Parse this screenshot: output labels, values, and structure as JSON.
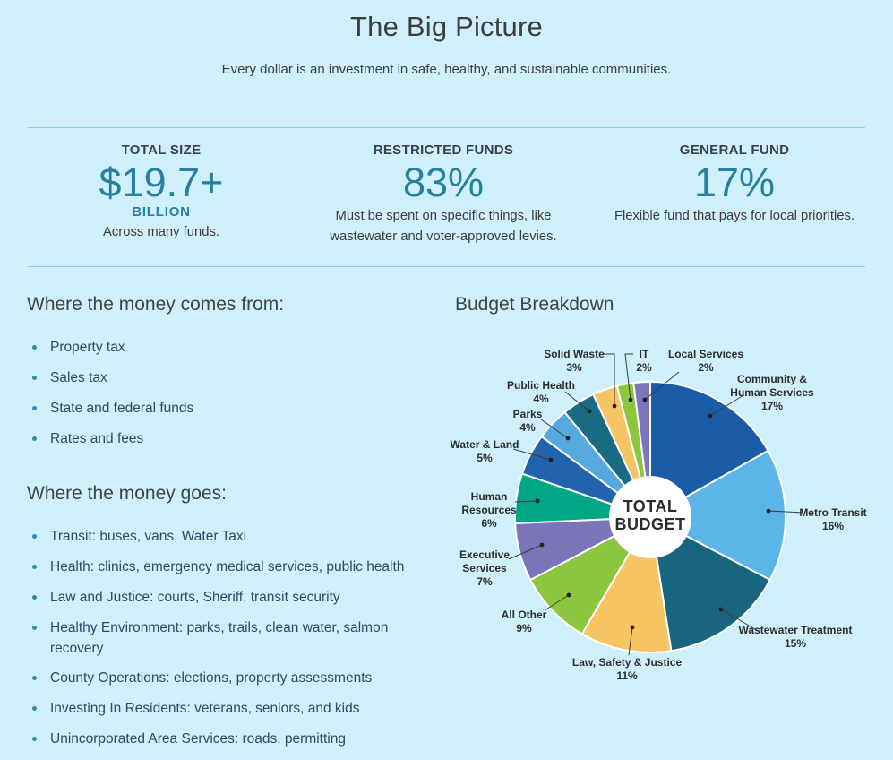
{
  "page": {
    "title": "The Big Picture",
    "subtitle": "Every dollar is an investment in safe, healthy, and sustainable communities."
  },
  "stats": [
    {
      "label": "TOTAL SIZE",
      "value": "$19.7+",
      "value_sub": "BILLION",
      "caption": "Across many funds."
    },
    {
      "label": "RESTRICTED FUNDS",
      "value": "83%",
      "caption": "Must be spent on specific things, like wastewater and voter-approved levies."
    },
    {
      "label": "GENERAL FUND",
      "value": "17%",
      "caption": "Flexible fund that pays for local priorities."
    }
  ],
  "sources": {
    "heading": "Where the money comes from:",
    "items": [
      "Property tax",
      "Sales tax",
      "State and federal funds",
      "Rates and fees"
    ]
  },
  "spending": {
    "heading": "Where the money goes:",
    "items": [
      "Transit: buses, vans, Water Taxi",
      "Health: clinics, emergency medical services, public health",
      "Law and Justice: courts, Sheriff, transit security",
      "Healthy Environment: parks, trails, clean water, salmon recovery",
      "County Operations: elections, property assessments",
      "Investing In Residents: veterans, seniors, and kids",
      "Unincorporated Area Services: roads, permitting"
    ]
  },
  "chart_data": {
    "type": "pie",
    "title": "Budget Breakdown",
    "donut": true,
    "center_label": "TOTAL BUDGET",
    "start_angle_deg": 0,
    "direction": "clockwise",
    "legend_position": "around",
    "slices": [
      {
        "label": "Community & Human Services",
        "pct": 17,
        "color": "#1b5ca6"
      },
      {
        "label": "Metro Transit",
        "pct": 16,
        "color": "#5cb5e8"
      },
      {
        "label": "Wastewater Treatment",
        "pct": 15,
        "color": "#186580"
      },
      {
        "label": "Law, Safety & Justice",
        "pct": 11,
        "color": "#f7c464"
      },
      {
        "label": "All Other",
        "pct": 9,
        "color": "#8cc63f"
      },
      {
        "label": "Executive Services",
        "pct": 7,
        "color": "#7a74b8"
      },
      {
        "label": "Human Resources",
        "pct": 6,
        "color": "#00a583"
      },
      {
        "label": "Water & Land",
        "pct": 5,
        "color": "#2164ab"
      },
      {
        "label": "Parks",
        "pct": 4,
        "color": "#55a9de"
      },
      {
        "label": "Public Health",
        "pct": 4,
        "color": "#1b6a84"
      },
      {
        "label": "Solid Waste",
        "pct": 3,
        "color": "#f7c464"
      },
      {
        "label": "IT",
        "pct": 2,
        "color": "#8cc63f"
      },
      {
        "label": "Local Services",
        "pct": 2,
        "color": "#7b75b9"
      }
    ]
  },
  "colors": {
    "background": "#cff0fb",
    "accent_teal": "#28809f",
    "divider": "#82d2e2",
    "bullet": "#2f8dab",
    "heading_text": "#3f4443",
    "list_text": "#2e4b63"
  }
}
